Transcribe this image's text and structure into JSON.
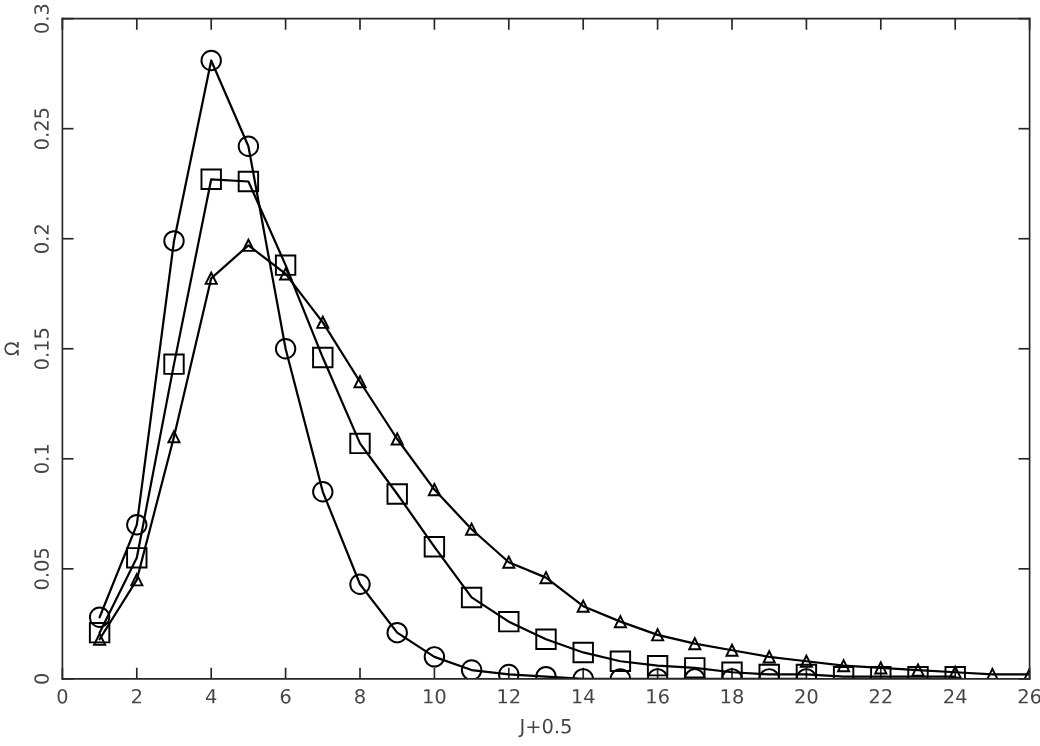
{
  "chart_data": {
    "type": "line",
    "xlabel": "J+0.5",
    "ylabel": "Ω",
    "xlim": [
      0,
      26
    ],
    "xticks": [
      0,
      2,
      4,
      6,
      8,
      10,
      12,
      14,
      16,
      18,
      20,
      22,
      24,
      26
    ],
    "ylim": [
      0,
      0.3
    ],
    "yticks": [
      0,
      0.05,
      0.1,
      0.15,
      0.2,
      0.25,
      0.3
    ],
    "grid": false,
    "legend": false,
    "line_style": "solid",
    "series": [
      {
        "color": "#000000",
        "marker": "circle",
        "x": [
          1,
          2,
          3,
          4,
          5,
          6,
          7,
          8,
          9,
          10,
          11,
          12,
          13,
          14,
          15,
          16,
          17,
          18,
          19,
          20
        ],
        "values": [
          0.028,
          0.07,
          0.199,
          0.281,
          0.242,
          0.15,
          0.085,
          0.043,
          0.021,
          0.01,
          0.004,
          0.002,
          0.001,
          0,
          0,
          0,
          0,
          0,
          0,
          0
        ]
      },
      {
        "color": "#000000",
        "marker": "square",
        "x": [
          1,
          2,
          3,
          4,
          5,
          6,
          7,
          8,
          9,
          10,
          11,
          12,
          13,
          14,
          15,
          16,
          17,
          18,
          19,
          20,
          21,
          22,
          23,
          24
        ],
        "values": [
          0.021,
          0.055,
          0.143,
          0.227,
          0.226,
          0.188,
          0.146,
          0.107,
          0.084,
          0.06,
          0.037,
          0.026,
          0.018,
          0.012,
          0.008,
          0.006,
          0.005,
          0.003,
          0.002,
          0.002,
          0.001,
          0.001,
          0.001,
          0.001
        ]
      },
      {
        "color": "#000000",
        "marker": "triangle",
        "x": [
          1,
          2,
          3,
          4,
          5,
          6,
          7,
          8,
          9,
          10,
          11,
          12,
          13,
          14,
          15,
          16,
          17,
          18,
          19,
          20,
          21,
          22,
          23,
          24,
          25,
          26
        ],
        "values": [
          0.018,
          0.045,
          0.11,
          0.182,
          0.197,
          0.184,
          0.162,
          0.135,
          0.109,
          0.086,
          0.068,
          0.053,
          0.046,
          0.033,
          0.026,
          0.02,
          0.016,
          0.013,
          0.01,
          0.008,
          0.006,
          0.005,
          0.004,
          0.003,
          0.002,
          0.002
        ]
      }
    ]
  }
}
